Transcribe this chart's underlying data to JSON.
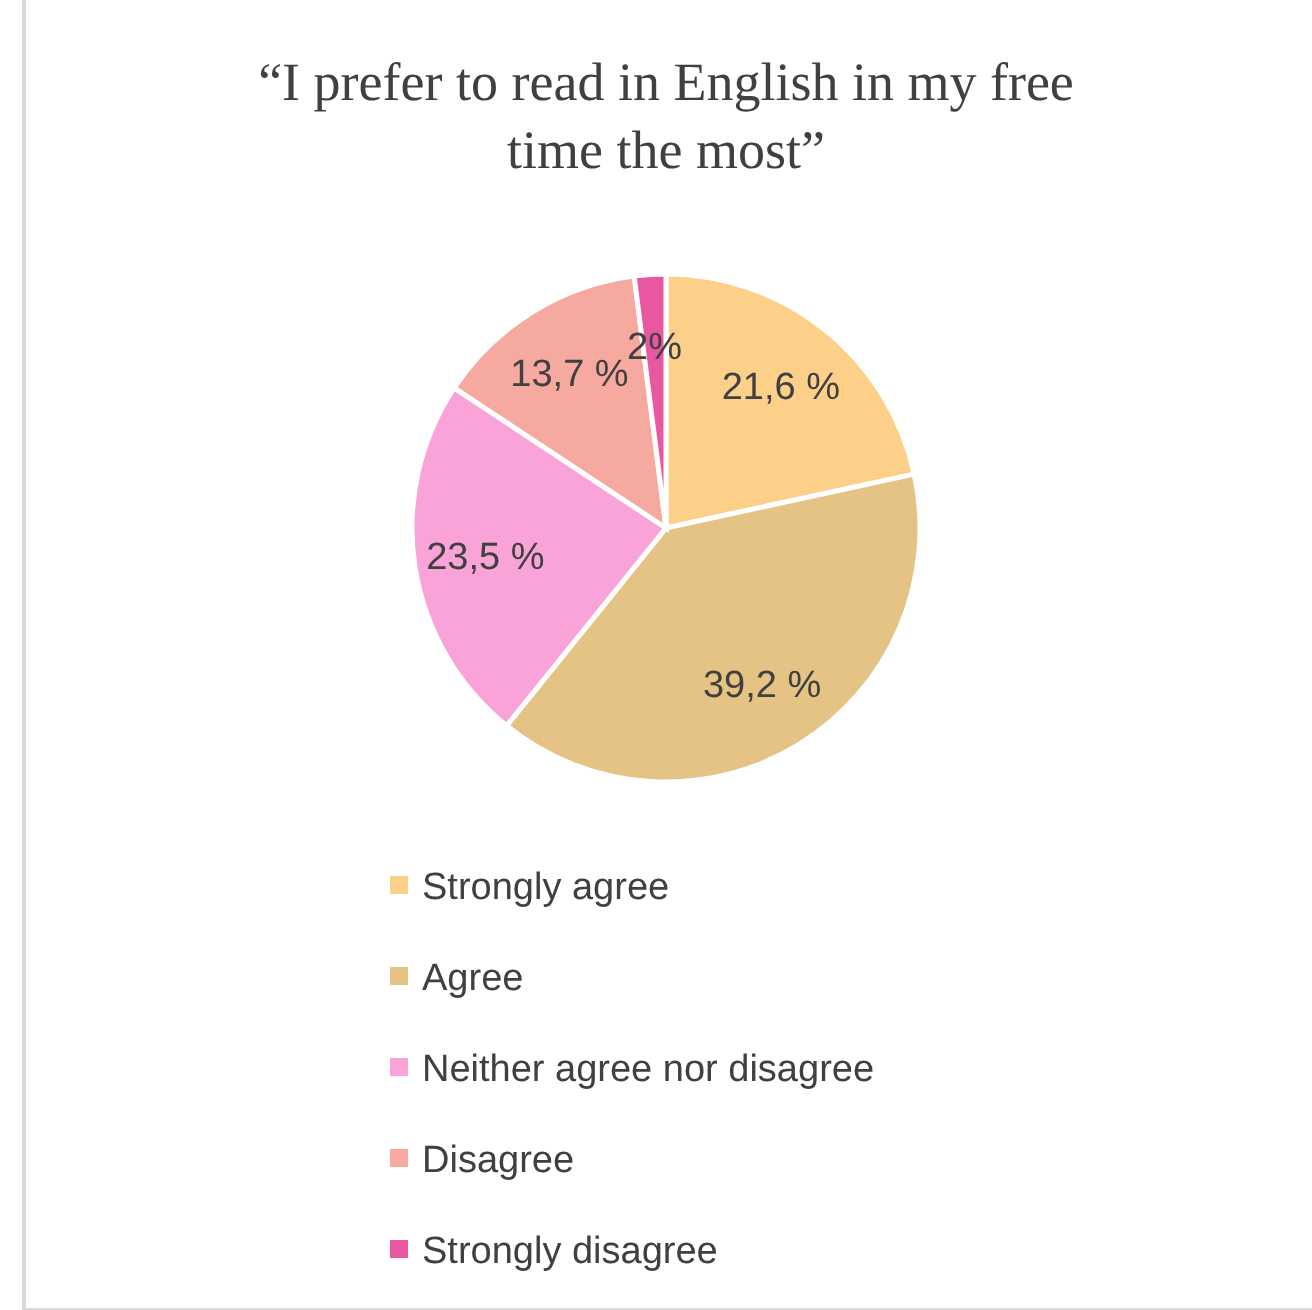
{
  "chart_data": {
    "type": "pie",
    "title": "“I prefer to read in English in my free time the most”",
    "categories": [
      "Strongly agree",
      "Agree",
      "Neither agree nor disagree",
      "Disagree",
      "Strongly disagree"
    ],
    "values": [
      21.6,
      39.2,
      23.5,
      13.7,
      2
    ],
    "colors": [
      "#fdd08a",
      "#e5c384",
      "#f9a3d8",
      "#f5a99f",
      "#e8579f"
    ],
    "value_labels": [
      "21,6 %",
      "39,2 %",
      "23,5 %",
      "13,7 %",
      "2%"
    ],
    "legend": "bottom"
  }
}
